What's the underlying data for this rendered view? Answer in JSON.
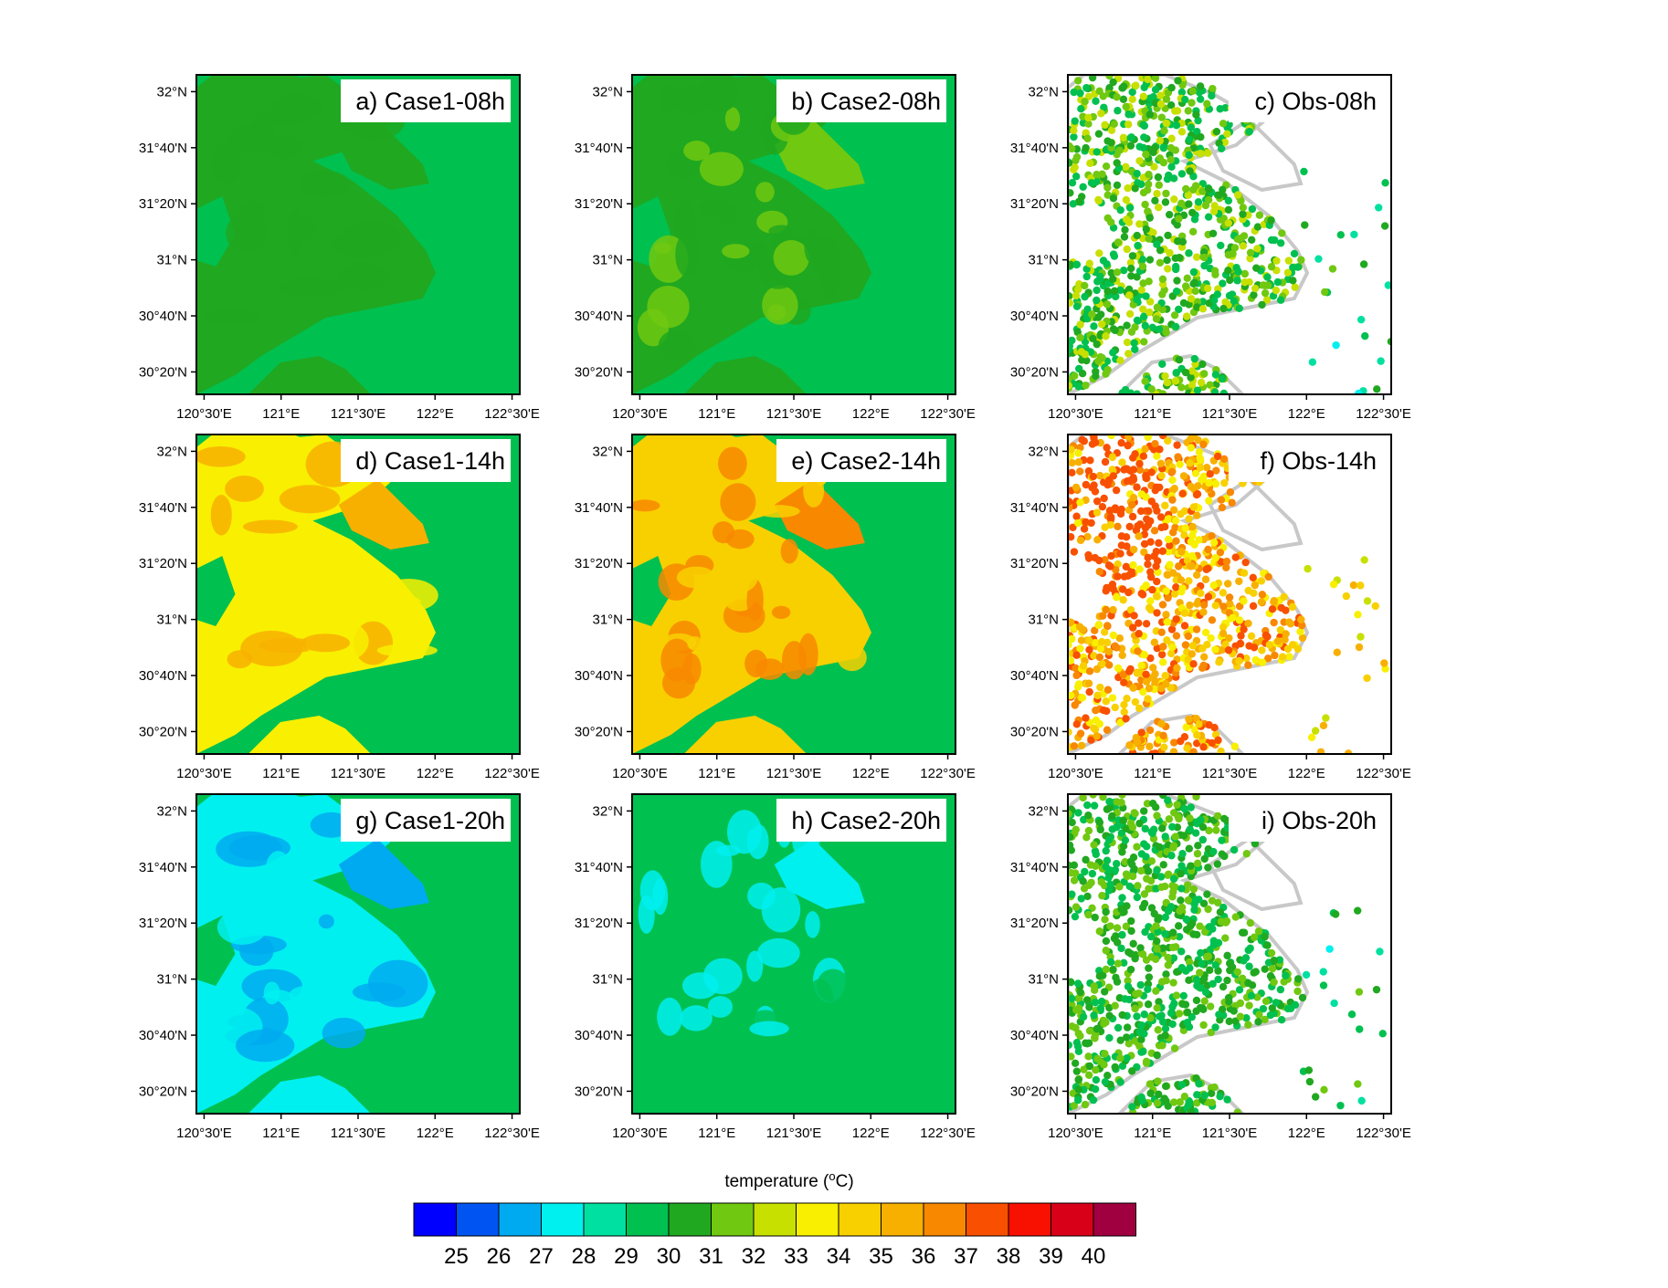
{
  "chart_data": {
    "type": "heatmap",
    "layout": "3x3 small-multiple map panels",
    "region": "Shanghai / Yangtze River Delta",
    "x_axis": {
      "ticks": [
        120.5,
        121.0,
        121.5,
        122.0,
        122.5
      ],
      "tick_labels": [
        "120°30'E",
        "121°E",
        "121°30'E",
        "122°E",
        "122°30'E"
      ],
      "range": [
        120.45,
        122.55
      ]
    },
    "y_axis": {
      "ticks": [
        32.0,
        31.6667,
        31.3333,
        31.0,
        30.6667,
        30.3333
      ],
      "tick_labels": [
        "32°N",
        "31°40'N",
        "31°20'N",
        "31°N",
        "30°40'N",
        "30°20'N"
      ],
      "range": [
        30.2,
        32.1
      ]
    },
    "panels": [
      {
        "label": "a) Case1-08h",
        "kind": "model",
        "case": "Case1",
        "time": "08h",
        "ocean_temp": 29,
        "land_temp": 30,
        "land_warm_temp": 30
      },
      {
        "label": "b) Case2-08h",
        "kind": "model",
        "case": "Case2",
        "time": "08h",
        "ocean_temp": 29,
        "land_temp": 30,
        "land_warm_temp": 31
      },
      {
        "label": "c) Obs-08h",
        "kind": "obs",
        "time": "08h",
        "dominant_temps": [
          30,
          31,
          32,
          33
        ]
      },
      {
        "label": "d) Case1-14h",
        "kind": "model",
        "case": "Case1",
        "time": "14h",
        "ocean_temp": 29,
        "land_temp": 33,
        "land_warm_temp": 35
      },
      {
        "label": "e) Case2-14h",
        "kind": "model",
        "case": "Case2",
        "time": "14h",
        "ocean_temp": 29,
        "land_temp": 34,
        "land_warm_temp": 36
      },
      {
        "label": "f) Obs-14h",
        "kind": "obs",
        "time": "14h",
        "dominant_temps": [
          34,
          35,
          36,
          37,
          38
        ]
      },
      {
        "label": "g) Case1-20h",
        "kind": "model",
        "case": "Case1",
        "time": "20h",
        "ocean_temp": 29,
        "land_temp": 27,
        "land_warm_temp": 26
      },
      {
        "label": "h) Case2-20h",
        "kind": "model",
        "case": "Case2",
        "time": "20h",
        "ocean_temp": 29,
        "land_temp": 29,
        "land_warm_temp": 27
      },
      {
        "label": "i) Obs-20h",
        "kind": "obs",
        "time": "20h",
        "dominant_temps": [
          30,
          31,
          32
        ]
      }
    ],
    "colorbar": {
      "title_main": "temperature (",
      "title_sup": "o",
      "title_end": "C)",
      "levels": [
        25,
        26,
        27,
        28,
        29,
        30,
        31,
        32,
        33,
        34,
        35,
        36,
        37,
        38,
        39,
        40
      ],
      "colors": [
        "#0000ff",
        "#0055f2",
        "#00aaf0",
        "#00f0f0",
        "#00e0a0",
        "#00c050",
        "#20a820",
        "#70c810",
        "#c8e000",
        "#f8f000",
        "#f8d000",
        "#f8b000",
        "#f88800",
        "#f85000",
        "#f81000",
        "#d80018",
        "#a00040"
      ]
    }
  }
}
